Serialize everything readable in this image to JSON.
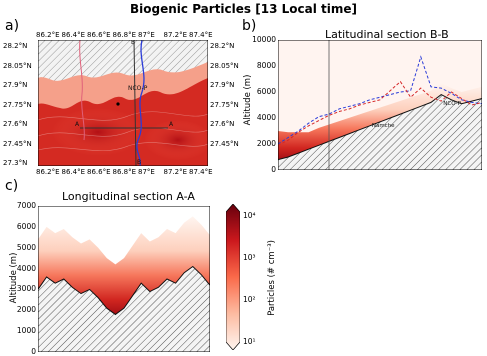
{
  "figure": {
    "title": "Biogenic Particles [13 Local time]"
  },
  "panels": {
    "a": {
      "label": "a)",
      "lon_ticks": [
        "86.2°E",
        "86.4°E",
        "86.6°E",
        "86.8°E",
        "87°E",
        "87.2°E",
        "87.4°E"
      ],
      "lat_ticks_left": [
        "28.2°N",
        "28.05°N",
        "27.9°N",
        "27.75°N",
        "27.6°N",
        "27.45°N",
        "27.3°N"
      ],
      "lat_ticks_right": [
        "28.2°N",
        "28.05°N",
        "27.9°N",
        "27.75°N",
        "27.6°N",
        "27.45°N"
      ],
      "marker_labels": [
        "B",
        "A",
        "A",
        "B"
      ],
      "site_labels": [
        "NCO-P"
      ]
    },
    "b": {
      "label": "b)",
      "subtitle": "Latitudinal section B-B",
      "ylabel": "Altitude (m)",
      "yticks": [
        "0",
        "2000",
        "4000",
        "6000",
        "8000",
        "10000"
      ],
      "annotations": [
        "Namche",
        "NCO-P"
      ]
    },
    "c": {
      "label": "c)",
      "subtitle": "Longitudinal section A-A",
      "ylabel": "Altitude (m)",
      "yticks": [
        "0",
        "1000",
        "2000",
        "3000",
        "4000",
        "5000",
        "6000",
        "7000"
      ]
    },
    "colorbar": {
      "label": "Particles (# cm⁻³)",
      "ticks": [
        "10¹",
        "10²",
        "10³",
        "10⁴"
      ]
    }
  },
  "colors": {
    "low": "#fff5f0",
    "mid": "#fb6a4a",
    "high": "#cb181d",
    "max": "#67000d",
    "line_blue": "#2b3cd8",
    "line_red": "#d62728"
  },
  "chart_data": [
    {
      "type": "heatmap",
      "panel": "a",
      "xlabel": "",
      "ylabel": "",
      "xlim": [
        86.2,
        87.4
      ],
      "ylim": [
        27.3,
        28.2
      ],
      "section_lines": [
        {
          "name": "A-A",
          "lon": [
            86.4,
            87.0
          ],
          "lat": [
            27.58,
            27.58
          ]
        },
        {
          "name": "B-B",
          "lon": [
            86.85,
            86.85
          ],
          "lat": [
            27.3,
            28.2
          ]
        }
      ],
      "site": {
        "name": "NCO-P",
        "lon": 86.82,
        "lat": 27.96
      }
    },
    {
      "type": "area",
      "panel": "b",
      "title": "Latitudinal section B-B",
      "ylabel": "Altitude (m)",
      "ylim": [
        0,
        10000
      ],
      "x": [
        0,
        0.05,
        0.1,
        0.15,
        0.2,
        0.25,
        0.3,
        0.35,
        0.4,
        0.45,
        0.5,
        0.55,
        0.6,
        0.65,
        0.7,
        0.75,
        0.8,
        0.85,
        0.9,
        0.95,
        1.0
      ],
      "series": [
        {
          "values": [
            800,
            1000,
            1300,
            1600,
            1900,
            2200,
            2500,
            2800,
            3100,
            3400,
            3700,
            4000,
            4300,
            4600,
            4900,
            5200,
            5800,
            5400,
            5100,
            5300,
            5500
          ]
        },
        {
          "values": [
            2000,
            2500,
            3000,
            3600,
            4100,
            4300,
            4700,
            4900,
            5100,
            5400,
            5600,
            5800,
            6000,
            6100,
            8700,
            6400,
            6300,
            5900,
            5400,
            5200,
            5100
          ]
        },
        {
          "values": [
            1900,
            2300,
            2900,
            3400,
            3800,
            4200,
            4500,
            4700,
            5000,
            5200,
            5400,
            6100,
            6800,
            5600,
            6300,
            5600,
            5300,
            6000,
            5500,
            5000,
            5200
          ]
        }
      ],
      "colorscale": "log",
      "cbar_range": [
        10,
        100000
      ]
    },
    {
      "type": "area",
      "panel": "c",
      "title": "Longitudinal section A-A",
      "ylabel": "Altitude (m)",
      "ylim": [
        0,
        7000
      ],
      "x": [
        0,
        0.05,
        0.1,
        0.15,
        0.2,
        0.25,
        0.3,
        0.35,
        0.4,
        0.45,
        0.5,
        0.55,
        0.6,
        0.65,
        0.7,
        0.75,
        0.8,
        0.85,
        0.9,
        0.95,
        1.0
      ],
      "series": [
        {
          "values": [
            3000,
            3600,
            3300,
            3500,
            3100,
            2800,
            3000,
            2600,
            2100,
            1800,
            2100,
            2700,
            3300,
            2900,
            3100,
            3500,
            3300,
            3800,
            4100,
            3700,
            3200
          ]
        }
      ],
      "colorscale": "log",
      "cbar_range": [
        10,
        100000
      ]
    }
  ]
}
